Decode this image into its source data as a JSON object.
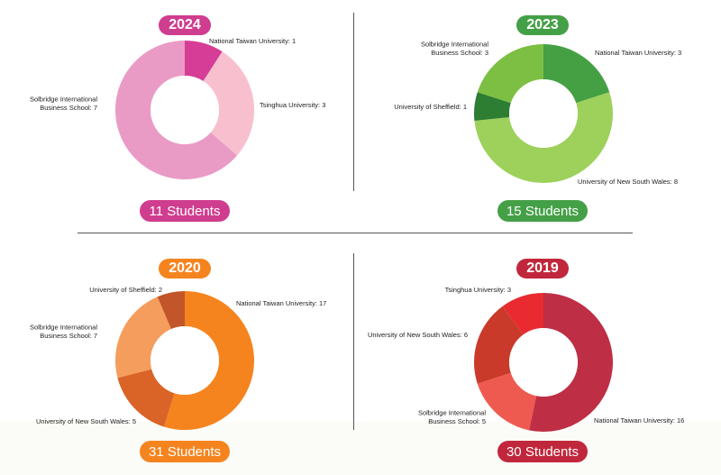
{
  "chart_data": [
    {
      "type": "pie",
      "title": "2024",
      "total_label": "11 Students",
      "colors": [
        "#d63d96",
        "#f8c0cf",
        "#ea9bc5"
      ],
      "slices": [
        {
          "label": "National Taiwan University: 1",
          "value": 1
        },
        {
          "label": "Tsinghua University: 3",
          "value": 3
        },
        {
          "label": "Solbridge International\nBusiness School: 7",
          "value": 7
        }
      ],
      "title_color": "#cf3d8f",
      "total_color": "#cf3d8f"
    },
    {
      "type": "pie",
      "title": "2023",
      "total_label": "15 Students",
      "colors": [
        "#45a043",
        "#9dd15b",
        "#2d7d33",
        "#7cbf43"
      ],
      "slices": [
        {
          "label": "National Taiwan University: 3",
          "value": 3
        },
        {
          "label": "University of New South Wales: 8",
          "value": 8
        },
        {
          "label": "University of Sheffield: 1",
          "value": 1
        },
        {
          "label": "Solbridge International\nBusiness School: 3",
          "value": 3
        }
      ],
      "title_color": "#44a047",
      "total_color": "#44a047"
    },
    {
      "type": "pie",
      "title": "2020",
      "total_label": "31 Students",
      "colors": [
        "#f5841f",
        "#da6428",
        "#f59d5c",
        "#c25529"
      ],
      "slices": [
        {
          "label": "National Taiwan University: 17",
          "value": 17
        },
        {
          "label": "University of New South Wales: 5",
          "value": 5
        },
        {
          "label": "Solbridge International\nBusiness School: 7",
          "value": 7
        },
        {
          "label": "University of Sheffield: 2",
          "value": 2
        }
      ],
      "title_color": "#f5841f",
      "total_color": "#f5841f"
    },
    {
      "type": "pie",
      "title": "2019",
      "total_label": "30 Students",
      "colors": [
        "#be2e45",
        "#ef5a50",
        "#c93a2a",
        "#e92a30"
      ],
      "slices": [
        {
          "label": "National Taiwan University: 16",
          "value": 16
        },
        {
          "label": "Solbridge International\nBusiness School: 5",
          "value": 5
        },
        {
          "label": "University of New South Wales: 6",
          "value": 6
        },
        {
          "label": "Tsinghua University: 3",
          "value": 3
        }
      ],
      "title_color": "#c1273c",
      "total_color": "#c1273c"
    }
  ]
}
